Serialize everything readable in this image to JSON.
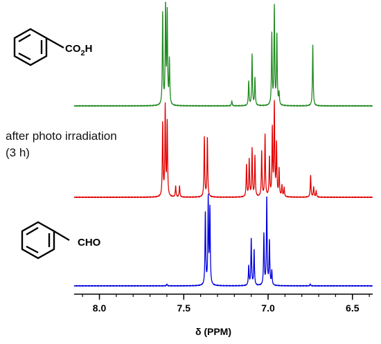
{
  "chart_data": {
    "type": "line",
    "xlabel": "δ (PPM)",
    "x_reversed": true,
    "xlim": [
      8.15,
      6.38
    ],
    "ticks": [
      {
        "value": 8.0,
        "label": "8.0"
      },
      {
        "value": 7.5,
        "label": "7.5"
      },
      {
        "value": 7.0,
        "label": "7.0"
      },
      {
        "value": 6.5,
        "label": "6.5"
      }
    ],
    "minor_tick_step": 0.1,
    "grid": false,
    "annotations": {
      "top_structure": {
        "label_main": "CO",
        "label_sub": "2",
        "label_end": "H"
      },
      "middle_note": {
        "line1": "after photo irradiation",
        "line2": "(3 h)"
      },
      "bottom_structure": {
        "label": "CHO"
      }
    },
    "series": [
      {
        "color": "#1f8a1f",
        "xrange": [
          8.15,
          6.38
        ],
        "peaks": [
          {
            "x": 7.625,
            "h": 0.93
          },
          {
            "x": 7.608,
            "h": 1.0
          },
          {
            "x": 7.598,
            "h": 0.92
          },
          {
            "x": 7.585,
            "h": 0.45
          },
          {
            "x": 7.215,
            "h": 0.05
          },
          {
            "x": 7.115,
            "h": 0.25
          },
          {
            "x": 7.095,
            "h": 0.52
          },
          {
            "x": 7.078,
            "h": 0.28
          },
          {
            "x": 6.978,
            "h": 0.72
          },
          {
            "x": 6.963,
            "h": 1.0
          },
          {
            "x": 6.948,
            "h": 0.72
          },
          {
            "x": 6.935,
            "h": 0.12
          },
          {
            "x": 6.735,
            "h": 0.62
          }
        ]
      },
      {
        "color": "#e00000",
        "xrange": [
          8.15,
          6.38
        ],
        "peaks": [
          {
            "x": 7.625,
            "h": 0.79
          },
          {
            "x": 7.61,
            "h": 0.97
          },
          {
            "x": 7.598,
            "h": 0.8
          },
          {
            "x": 7.548,
            "h": 0.12
          },
          {
            "x": 7.525,
            "h": 0.12
          },
          {
            "x": 7.378,
            "h": 0.65
          },
          {
            "x": 7.36,
            "h": 0.65
          },
          {
            "x": 7.128,
            "h": 0.35
          },
          {
            "x": 7.112,
            "h": 0.41
          },
          {
            "x": 7.095,
            "h": 0.52
          },
          {
            "x": 7.078,
            "h": 0.44
          },
          {
            "x": 7.038,
            "h": 0.49
          },
          {
            "x": 7.018,
            "h": 0.67
          },
          {
            "x": 6.992,
            "h": 0.42
          },
          {
            "x": 6.975,
            "h": 0.73
          },
          {
            "x": 6.963,
            "h": 1.0
          },
          {
            "x": 6.95,
            "h": 0.56
          },
          {
            "x": 6.935,
            "h": 0.3
          },
          {
            "x": 6.918,
            "h": 0.12
          },
          {
            "x": 6.905,
            "h": 0.1
          },
          {
            "x": 6.748,
            "h": 0.24
          },
          {
            "x": 6.73,
            "h": 0.11
          },
          {
            "x": 6.715,
            "h": 0.07
          }
        ]
      },
      {
        "color": "#0000dd",
        "xrange": [
          8.15,
          6.38
        ],
        "peaks": [
          {
            "x": 7.372,
            "h": 0.83
          },
          {
            "x": 7.355,
            "h": 0.97
          },
          {
            "x": 7.345,
            "h": 0.85
          },
          {
            "x": 7.115,
            "h": 0.22
          },
          {
            "x": 7.1,
            "h": 0.53
          },
          {
            "x": 7.083,
            "h": 0.4
          },
          {
            "x": 7.025,
            "h": 0.58
          },
          {
            "x": 7.008,
            "h": 1.0
          },
          {
            "x": 6.992,
            "h": 0.5
          },
          {
            "x": 6.978,
            "h": 0.16
          },
          {
            "x": 7.6,
            "h": 0.02
          },
          {
            "x": 6.75,
            "h": 0.02
          }
        ]
      }
    ]
  }
}
